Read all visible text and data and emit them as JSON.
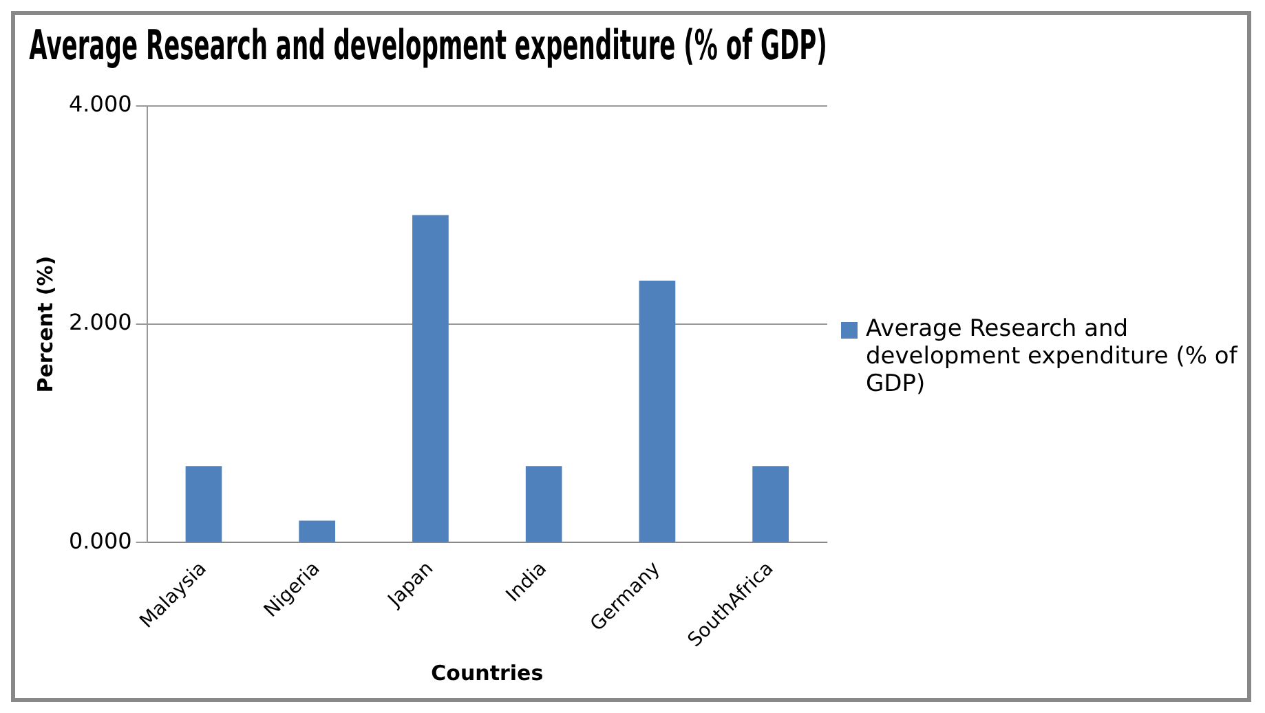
{
  "chart_data": {
    "type": "bar",
    "title": "Average Research and development expenditure (% of GDP)",
    "xlabel": "Countries",
    "ylabel": "Percent (%)",
    "categories": [
      "Malaysia",
      "Nigeria",
      "Japan",
      "India",
      "Germany",
      "SouthAfrica"
    ],
    "series": [
      {
        "name": "Average Research and development expenditure (% of GDP)",
        "color": "#4f81bd",
        "values": [
          0.7,
          0.2,
          3.0,
          0.7,
          2.4,
          0.7
        ]
      }
    ],
    "ylim": [
      0,
      4
    ],
    "yticks": [
      {
        "value": 0,
        "label": "0.000"
      },
      {
        "value": 2,
        "label": "2.000"
      },
      {
        "value": 4,
        "label": "4.000"
      }
    ],
    "grid": "y",
    "legend": "right"
  }
}
